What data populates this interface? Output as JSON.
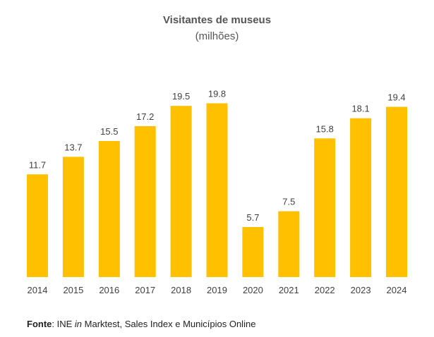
{
  "chart_data": {
    "type": "bar",
    "title": "Visitantes de museus",
    "subtitle": "(milhões)",
    "categories": [
      "2014",
      "2015",
      "2016",
      "2017",
      "2018",
      "2019",
      "2020",
      "2021",
      "2022",
      "2023",
      "2024"
    ],
    "values": [
      11.7,
      13.7,
      15.5,
      17.2,
      19.5,
      19.8,
      5.7,
      7.5,
      15.8,
      18.1,
      19.4
    ],
    "value_labels": [
      "11.7",
      "13.7",
      "15.5",
      "17.2",
      "19.5",
      "19.8",
      "5.7",
      "7.5",
      "15.8",
      "18.1",
      "19.4"
    ],
    "xlabel": "",
    "ylabel": "",
    "ylim": [
      0,
      20
    ],
    "grid": false,
    "bar_color": "#FFC000"
  },
  "source": {
    "label": "Fonte",
    "separator": ": INE ",
    "in_word": "in",
    "rest": " Marktest, Sales Index e Municípios Online"
  }
}
